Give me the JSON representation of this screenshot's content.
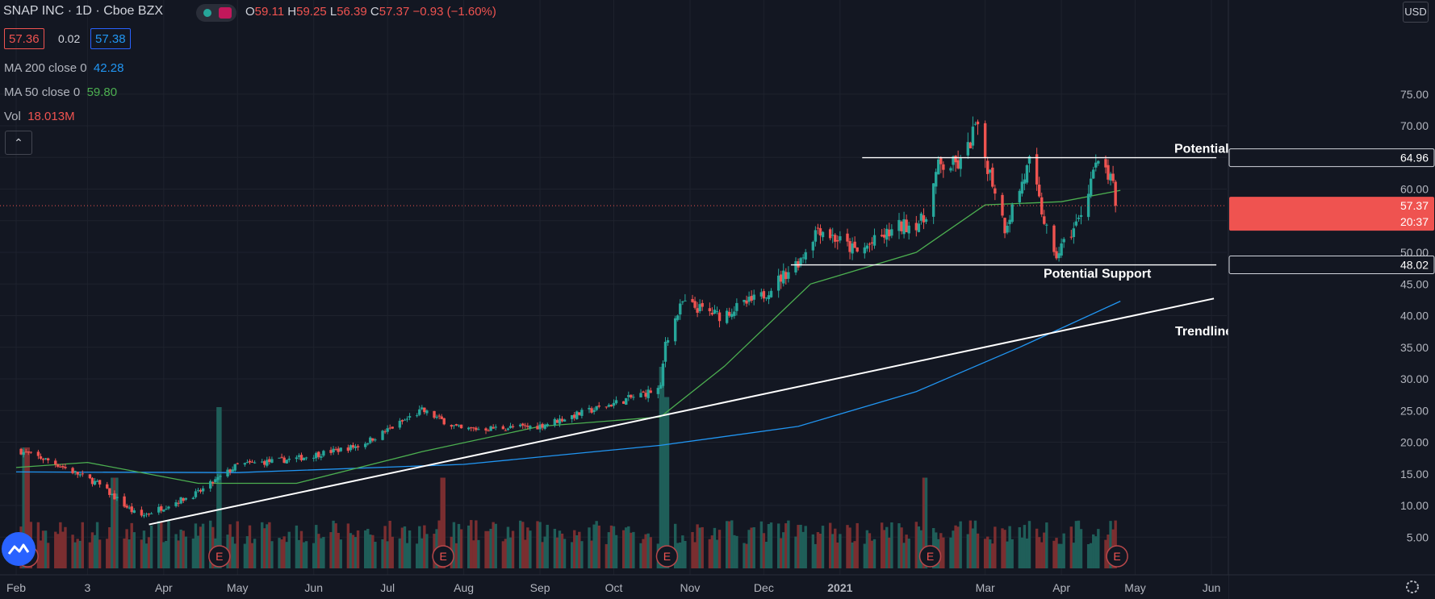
{
  "header": {
    "symbol": "SNAP INC",
    "interval": "1D",
    "exchange": "Cboe BZX",
    "open_label": "O",
    "open": "59.11",
    "high_label": "H",
    "high": "59.25",
    "low_label": "L",
    "low": "56.39",
    "close_label": "C",
    "close": "57.37",
    "change": "−0.93 (−1.60%)"
  },
  "quote": {
    "bid": "57.36",
    "spread": "0.02",
    "ask": "57.38"
  },
  "indicators": [
    {
      "label": "MA 200 close 0",
      "value": "42.28",
      "color": "#2196f3"
    },
    {
      "label": "MA 50 close 0",
      "value": "59.80",
      "color": "#4caf50"
    },
    {
      "label": "Vol",
      "value": "18.013M",
      "color": "#ef5350"
    }
  ],
  "currency": "USD",
  "colors": {
    "up": "#26a69a",
    "down": "#ef5350",
    "ma200": "#2196f3",
    "ma50": "#4caf50",
    "background": "#131722"
  },
  "chart_data": {
    "type": "candlestick",
    "title": "SNAP INC, 1D, Cboe BZX",
    "y_axis_ticks": [
      5,
      10,
      15,
      20,
      25,
      30,
      35,
      40,
      45,
      50,
      55,
      60,
      65,
      70,
      75
    ],
    "y_axis_tick_labels": [
      "5.00",
      "10.00",
      "15.00",
      "20.00",
      "25.00",
      "30.00",
      "35.00",
      "40.00",
      "45.00",
      "50.00",
      "55.00",
      "60.00",
      "65.00",
      "70.00",
      "75.00"
    ],
    "ylim": [
      2,
      79
    ],
    "x_axis_labels": [
      "Feb",
      "3",
      "Apr",
      "May",
      "Jun",
      "Jul",
      "Aug",
      "Sep",
      "Oct",
      "Nov",
      "Dec",
      "2021",
      "Mar",
      "Apr",
      "May",
      "Jun"
    ],
    "x_axis_label_dates": [
      "2020-02",
      "2020-03",
      "2020-04",
      "2020-05",
      "2020-06",
      "2020-07",
      "2020-08",
      "2020-09",
      "2020-10",
      "2020-11",
      "2020-12",
      "2021-01",
      "2021-03",
      "2021-04",
      "2021-05",
      "2021-06"
    ],
    "price_keypoints": [
      [
        "2020-02-01",
        18.8
      ],
      [
        "2020-02-15",
        17.0
      ],
      [
        "2020-03-05",
        13.5
      ],
      [
        "2020-03-22",
        8.2
      ],
      [
        "2020-04-15",
        12.0
      ],
      [
        "2020-05-01",
        16.4
      ],
      [
        "2020-05-25",
        17.4
      ],
      [
        "2020-06-20",
        19.5
      ],
      [
        "2020-07-15",
        25.0
      ],
      [
        "2020-07-31",
        22.0
      ],
      [
        "2020-08-31",
        22.5
      ],
      [
        "2020-09-30",
        26.0
      ],
      [
        "2020-10-20",
        28.5
      ],
      [
        "2020-10-22",
        36.0
      ],
      [
        "2020-10-29",
        42.0
      ],
      [
        "2020-11-13",
        40.0
      ],
      [
        "2020-11-30",
        43.0
      ],
      [
        "2020-12-16",
        49.0
      ],
      [
        "2020-12-23",
        54.0
      ],
      [
        "2021-01-08",
        50.0
      ],
      [
        "2021-01-25",
        54.0
      ],
      [
        "2021-02-04",
        55.0
      ],
      [
        "2021-02-10",
        63.5
      ],
      [
        "2021-02-20",
        64.0
      ],
      [
        "2021-02-25",
        70.0
      ],
      [
        "2021-03-05",
        60.0
      ],
      [
        "2021-03-09",
        54.0
      ],
      [
        "2021-03-19",
        64.0
      ],
      [
        "2021-03-23",
        58.0
      ],
      [
        "2021-03-29",
        49.0
      ],
      [
        "2021-04-08",
        55.0
      ],
      [
        "2021-04-14",
        63.0
      ],
      [
        "2021-04-18",
        64.0
      ],
      [
        "2021-04-25",
        57.4
      ]
    ],
    "last_close": 57.37,
    "ma200_keypoints": [
      [
        "2020-02-01",
        15.3
      ],
      [
        "2020-05-01",
        15.2
      ],
      [
        "2020-08-01",
        16.5
      ],
      [
        "2020-10-20",
        19.5
      ],
      [
        "2020-12-15",
        22.5
      ],
      [
        "2021-02-01",
        28.0
      ],
      [
        "2021-03-15",
        35.0
      ],
      [
        "2021-04-25",
        42.28
      ]
    ],
    "ma50_keypoints": [
      [
        "2020-02-01",
        16.0
      ],
      [
        "2020-03-01",
        16.8
      ],
      [
        "2020-04-15",
        13.5
      ],
      [
        "2020-05-25",
        13.5
      ],
      [
        "2020-07-15",
        18.5
      ],
      [
        "2020-09-01",
        22.5
      ],
      [
        "2020-10-20",
        24.0
      ],
      [
        "2020-11-15",
        32.0
      ],
      [
        "2020-12-20",
        45.0
      ],
      [
        "2021-02-01",
        50.0
      ],
      [
        "2021-03-01",
        57.5
      ],
      [
        "2021-04-01",
        58.0
      ],
      [
        "2021-04-25",
        59.8
      ]
    ],
    "volume_spike_dates": [
      [
        "2020-02-05",
        0.6
      ],
      [
        "2020-03-12",
        0.45
      ],
      [
        "2020-04-24",
        0.8
      ],
      [
        "2020-07-24",
        0.45
      ],
      [
        "2020-10-21",
        1.0
      ],
      [
        "2020-10-23",
        0.85
      ],
      [
        "2021-02-05",
        0.45
      ]
    ],
    "earnings_markers": [
      "2020-02-04",
      "2020-04-22",
      "2020-07-22",
      "2020-10-21",
      "2021-02-05",
      "2021-04-22"
    ],
    "earnings_label": "E",
    "annotations": {
      "resistance": {
        "label": "Potential Resistance",
        "value": 64.96,
        "value_label": "64.96",
        "from": "2021-01-10",
        "to": "2021-06-03"
      },
      "support": {
        "label": "Potential Support",
        "value": 48.02,
        "value_label": "48.02",
        "from": "2020-12-12",
        "to": "2021-06-03"
      },
      "trendline": {
        "label": "Trendline Support",
        "from": [
          "2020-03-26",
          7.0
        ],
        "to": [
          "2021-06-02",
          42.7
        ]
      }
    },
    "last_price_label": {
      "value": "57.37",
      "countdown": "20:37"
    }
  }
}
